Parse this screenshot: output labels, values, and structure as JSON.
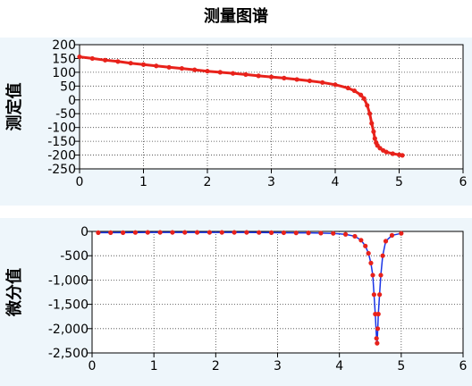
{
  "title": "测量图谱",
  "colors": {
    "marker": "#e8221b",
    "line": "#1a34e6",
    "panel_bg": "#eef6fb",
    "grid": "#404040"
  },
  "chart_data": [
    {
      "type": "scatter",
      "ylabel": "测定值",
      "xlim": [
        0,
        6
      ],
      "ylim": [
        -250,
        200
      ],
      "grid": true,
      "x_ticks": [
        0,
        1,
        2,
        3,
        4,
        5,
        6
      ],
      "y_ticks": [
        200,
        150,
        100,
        50,
        0,
        -50,
        -100,
        -150,
        -200,
        -250
      ],
      "x_tick_labels": [
        "0",
        "1",
        "2",
        "3",
        "4",
        "5",
        "6"
      ],
      "y_tick_labels": [
        "200",
        "150",
        "100",
        "50",
        "0",
        "-50",
        "-100",
        "-150",
        "-200",
        "-250"
      ],
      "series": [
        {
          "x": [
            0.0,
            0.2,
            0.4,
            0.6,
            0.8,
            1.0,
            1.2,
            1.4,
            1.6,
            1.8,
            2.0,
            2.2,
            2.4,
            2.6,
            2.8,
            3.0,
            3.2,
            3.4,
            3.6,
            3.8,
            4.0,
            4.2,
            4.3,
            4.4,
            4.45,
            4.5,
            4.54,
            4.57,
            4.6,
            4.62,
            4.64,
            4.66,
            4.7,
            4.75,
            4.8,
            4.9,
            5.0,
            5.05
          ],
          "y": [
            156,
            150,
            144,
            139,
            133,
            128,
            123,
            118,
            114,
            109,
            104,
            100,
            96,
            92,
            87,
            83,
            79,
            74,
            69,
            63,
            55,
            43,
            33,
            18,
            5,
            -20,
            -50,
            -85,
            -115,
            -140,
            -155,
            -165,
            -175,
            -183,
            -189,
            -195,
            -199,
            -201
          ]
        }
      ]
    },
    {
      "type": "line",
      "ylabel": "微分值",
      "xlim": [
        0,
        6
      ],
      "ylim": [
        -2500,
        0
      ],
      "grid": true,
      "x_ticks": [
        0,
        1,
        2,
        3,
        4,
        5,
        6
      ],
      "y_ticks": [
        0,
        -500,
        -1000,
        -1500,
        -2000,
        -2500
      ],
      "x_tick_labels": [
        "0",
        "1",
        "2",
        "3",
        "4",
        "5",
        "6"
      ],
      "y_tick_labels": [
        "0",
        "-500",
        "-1,000",
        "-1,500",
        "-2,000",
        "-2,500"
      ],
      "series": [
        {
          "x": [
            0.1,
            0.3,
            0.5,
            0.7,
            0.9,
            1.1,
            1.3,
            1.5,
            1.7,
            1.9,
            2.1,
            2.3,
            2.5,
            2.7,
            2.9,
            3.1,
            3.3,
            3.5,
            3.7,
            3.9,
            4.1,
            4.25,
            4.35,
            4.42,
            4.47,
            4.51,
            4.54,
            4.56,
            4.58,
            4.6,
            4.61,
            4.62,
            4.63,
            4.65,
            4.67,
            4.7,
            4.75,
            4.85,
            5.0
          ],
          "y": [
            -25,
            -25,
            -25,
            -22,
            -20,
            -20,
            -20,
            -20,
            -20,
            -20,
            -20,
            -20,
            -20,
            -22,
            -25,
            -27,
            -30,
            -30,
            -35,
            -40,
            -60,
            -100,
            -180,
            -300,
            -450,
            -650,
            -900,
            -1300,
            -1700,
            -2200,
            -2300,
            -2000,
            -1700,
            -1300,
            -900,
            -500,
            -200,
            -80,
            -40
          ]
        }
      ]
    }
  ]
}
